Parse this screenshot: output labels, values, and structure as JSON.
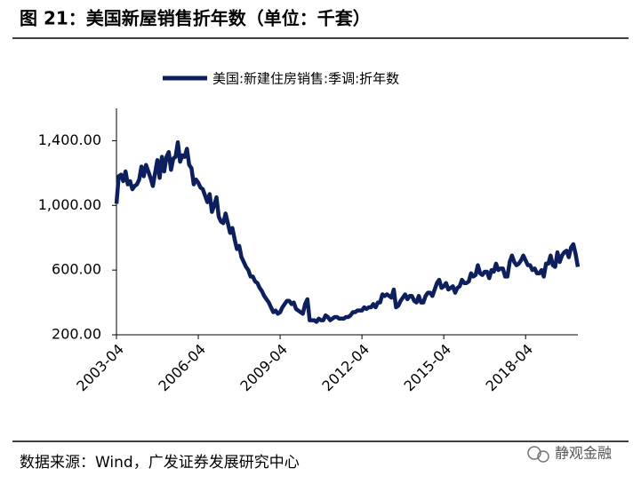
{
  "chart_data": {
    "type": "line",
    "title": "图 21：美国新屋销售折年数（单位：千套）",
    "source": "数据来源：Wind，广发证券发展研究中心",
    "x": [
      "2003-04",
      "2003-05",
      "2003-06",
      "2003-07",
      "2003-08",
      "2003-09",
      "2003-10",
      "2003-11",
      "2003-12",
      "2004-01",
      "2004-02",
      "2004-03",
      "2004-04",
      "2004-05",
      "2004-06",
      "2004-07",
      "2004-08",
      "2004-09",
      "2004-10",
      "2004-11",
      "2004-12",
      "2005-01",
      "2005-02",
      "2005-03",
      "2005-04",
      "2005-05",
      "2005-06",
      "2005-07",
      "2005-08",
      "2005-09",
      "2005-10",
      "2005-11",
      "2005-12",
      "2006-01",
      "2006-02",
      "2006-03",
      "2006-04",
      "2006-05",
      "2006-06",
      "2006-07",
      "2006-08",
      "2006-09",
      "2006-10",
      "2006-11",
      "2006-12",
      "2007-01",
      "2007-02",
      "2007-03",
      "2007-04",
      "2007-05",
      "2007-06",
      "2007-07",
      "2007-08",
      "2007-09",
      "2007-10",
      "2007-11",
      "2007-12",
      "2008-01",
      "2008-02",
      "2008-03",
      "2008-04",
      "2008-05",
      "2008-06",
      "2008-07",
      "2008-08",
      "2008-09",
      "2008-10",
      "2008-11",
      "2008-12",
      "2009-01",
      "2009-02",
      "2009-03",
      "2009-04",
      "2009-05",
      "2009-06",
      "2009-07",
      "2009-08",
      "2009-09",
      "2009-10",
      "2009-11",
      "2009-12",
      "2010-01",
      "2010-02",
      "2010-03",
      "2010-04",
      "2010-05",
      "2010-06",
      "2010-07",
      "2010-08",
      "2010-09",
      "2010-10",
      "2010-11",
      "2010-12",
      "2011-01",
      "2011-02",
      "2011-03",
      "2011-04",
      "2011-05",
      "2011-06",
      "2011-07",
      "2011-08",
      "2011-09",
      "2011-10",
      "2011-11",
      "2011-12",
      "2012-01",
      "2012-02",
      "2012-03",
      "2012-04",
      "2012-05",
      "2012-06",
      "2012-07",
      "2012-08",
      "2012-09",
      "2012-10",
      "2012-11",
      "2012-12",
      "2013-01",
      "2013-02",
      "2013-03",
      "2013-04",
      "2013-05",
      "2013-06",
      "2013-07",
      "2013-08",
      "2013-09",
      "2013-10",
      "2013-11",
      "2013-12",
      "2014-01",
      "2014-02",
      "2014-03",
      "2014-04",
      "2014-05",
      "2014-06",
      "2014-07",
      "2014-08",
      "2014-09",
      "2014-10",
      "2014-11",
      "2014-12",
      "2015-01",
      "2015-02",
      "2015-03",
      "2015-04",
      "2015-05",
      "2015-06",
      "2015-07",
      "2015-08",
      "2015-09",
      "2015-10",
      "2015-11",
      "2015-12",
      "2016-01",
      "2016-02",
      "2016-03",
      "2016-04",
      "2016-05",
      "2016-06",
      "2016-07",
      "2016-08",
      "2016-09",
      "2016-10",
      "2016-11",
      "2016-12",
      "2017-01",
      "2017-02",
      "2017-03",
      "2017-04",
      "2017-05",
      "2017-06",
      "2017-07",
      "2017-08",
      "2017-09",
      "2017-10",
      "2017-11",
      "2017-12",
      "2018-01",
      "2018-02",
      "2018-03",
      "2018-04",
      "2018-05",
      "2018-06",
      "2018-07",
      "2018-08",
      "2018-09",
      "2018-10",
      "2018-11",
      "2018-12",
      "2019-01",
      "2019-02",
      "2019-03",
      "2019-04",
      "2019-05",
      "2019-06",
      "2019-07",
      "2019-08",
      "2019-09",
      "2019-10",
      "2019-11",
      "2019-12",
      "2020-01",
      "2020-02",
      "2020-03"
    ],
    "xticks": [
      "2003-04",
      "2006-04",
      "2009-04",
      "2012-04",
      "2015-04",
      "2018-04"
    ],
    "series": [
      {
        "name": "美国:新建住房销售:季调:折年数",
        "color": "#0d1f5c",
        "values": [
          1010,
          1180,
          1190,
          1150,
          1210,
          1130,
          1150,
          1100,
          1120,
          1130,
          1160,
          1240,
          1180,
          1250,
          1210,
          1170,
          1120,
          1200,
          1280,
          1170,
          1300,
          1210,
          1300,
          1330,
          1220,
          1290,
          1300,
          1390,
          1270,
          1310,
          1300,
          1350,
          1250,
          1230,
          1130,
          1160,
          1140,
          1110,
          1100,
          1060,
          1020,
          1070,
          960,
          1000,
          1050,
          930,
          900,
          890,
          950,
          890,
          830,
          860,
          790,
          730,
          750,
          680,
          650,
          620,
          600,
          560,
          560,
          530,
          520,
          490,
          470,
          440,
          420,
          400,
          370,
          340,
          350,
          330,
          340,
          370,
          390,
          410,
          410,
          390,
          400,
          360,
          350,
          340,
          330,
          390,
          420,
          290,
          290,
          290,
          280,
          300,
          290,
          290,
          320,
          310,
          290,
          300,
          310,
          310,
          300,
          300,
          300,
          310,
          310,
          320,
          340,
          340,
          350,
          350,
          350,
          370,
          360,
          370,
          370,
          390,
          370,
          400,
          400,
          450,
          440,
          450,
          440,
          430,
          480,
          370,
          380,
          410,
          430,
          450,
          420,
          440,
          440,
          410,
          400,
          440,
          400,
          400,
          440,
          460,
          460,
          440,
          480,
          520,
          540,
          490,
          500,
          520,
          480,
          490,
          500,
          460,
          490,
          500,
          540,
          520,
          520,
          530,
          580,
          560,
          570,
          630,
          580,
          570,
          590,
          590,
          550,
          600,
          590,
          640,
          600,
          610,
          610,
          560,
          560,
          650,
          690,
          650,
          630,
          640,
          660,
          690,
          660,
          630,
          630,
          600,
          610,
          580,
          580,
          600,
          560,
          640,
          640,
          690,
          630,
          620,
          710,
          650,
          690,
          710,
          720,
          680,
          740,
          760,
          700,
          620
        ]
      }
    ],
    "ylim": [
      200,
      1600
    ],
    "yticks": [
      {
        "value": 200,
        "label": "200.00"
      },
      {
        "value": 600,
        "label": "600.00"
      },
      {
        "value": 1000,
        "label": "1,000.00"
      },
      {
        "value": 1400,
        "label": "1,400.00"
      }
    ]
  },
  "watermark": "静观金融"
}
